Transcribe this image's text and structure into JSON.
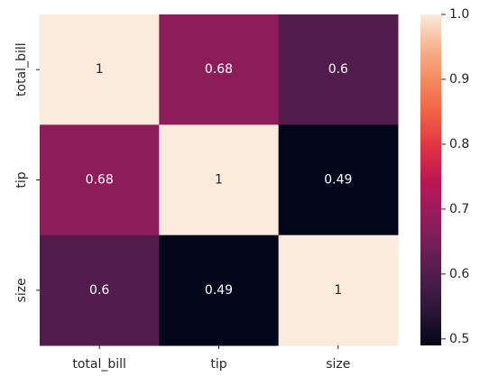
{
  "chart_data": {
    "type": "heatmap",
    "title": "",
    "xlabel": "",
    "ylabel": "",
    "x_categories": [
      "total_bill",
      "tip",
      "size"
    ],
    "y_categories": [
      "total_bill",
      "tip",
      "size"
    ],
    "values": [
      [
        1.0,
        0.68,
        0.6
      ],
      [
        0.68,
        1.0,
        0.49
      ],
      [
        0.6,
        0.49,
        1.0
      ]
    ],
    "annotations": [
      [
        "1",
        "0.68",
        "0.6"
      ],
      [
        "0.68",
        "1",
        "0.49"
      ],
      [
        "0.6",
        "0.49",
        "1"
      ]
    ],
    "colorbar": {
      "vmin": 0.49,
      "vmax": 1.0,
      "ticks": [
        0.5,
        0.6,
        0.7,
        0.8,
        0.9,
        1.0
      ],
      "tick_labels": [
        "0.5",
        "0.6",
        "0.7",
        "0.8",
        "0.9",
        "1.0"
      ]
    },
    "colormap": "rocket",
    "colormap_stops": [
      "#03051a",
      "#2a1636",
      "#4c1d4b",
      "#711f57",
      "#971c5b",
      "#bd1655",
      "#e13342",
      "#f06043",
      "#f58860",
      "#f6b48e",
      "#faebdd"
    ],
    "text_colors": {
      "light": "#ffffff",
      "dark": "#262626"
    },
    "axis_color": "#262626"
  }
}
